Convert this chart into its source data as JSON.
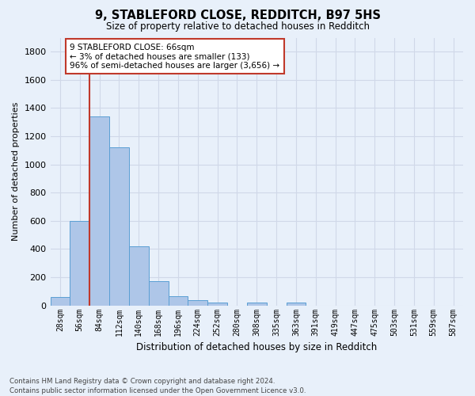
{
  "title1": "9, STABLEFORD CLOSE, REDDITCH, B97 5HS",
  "title2": "Size of property relative to detached houses in Redditch",
  "xlabel": "Distribution of detached houses by size in Redditch",
  "ylabel": "Number of detached properties",
  "bin_labels": [
    "28sqm",
    "56sqm",
    "84sqm",
    "112sqm",
    "140sqm",
    "168sqm",
    "196sqm",
    "224sqm",
    "252sqm",
    "280sqm",
    "308sqm",
    "335sqm",
    "363sqm",
    "391sqm",
    "419sqm",
    "447sqm",
    "475sqm",
    "503sqm",
    "531sqm",
    "559sqm",
    "587sqm"
  ],
  "bin_values": [
    60,
    600,
    1340,
    1120,
    420,
    170,
    65,
    40,
    20,
    0,
    20,
    0,
    20,
    0,
    0,
    0,
    0,
    0,
    0,
    0,
    0
  ],
  "bar_color": "#aec6e8",
  "bar_edge_color": "#5a9fd4",
  "grid_color": "#d0d8e8",
  "bg_color": "#e8f0fa",
  "vline_x": 1.5,
  "vline_color": "#c0392b",
  "annotation_text": "9 STABLEFORD CLOSE: 66sqm\n← 3% of detached houses are smaller (133)\n96% of semi-detached houses are larger (3,656) →",
  "annotation_box_color": "#ffffff",
  "annotation_box_edge_color": "#c0392b",
  "footnote": "Contains HM Land Registry data © Crown copyright and database right 2024.\nContains public sector information licensed under the Open Government Licence v3.0.",
  "ylim": [
    0,
    1900
  ],
  "yticks": [
    0,
    200,
    400,
    600,
    800,
    1000,
    1200,
    1400,
    1600,
    1800
  ]
}
